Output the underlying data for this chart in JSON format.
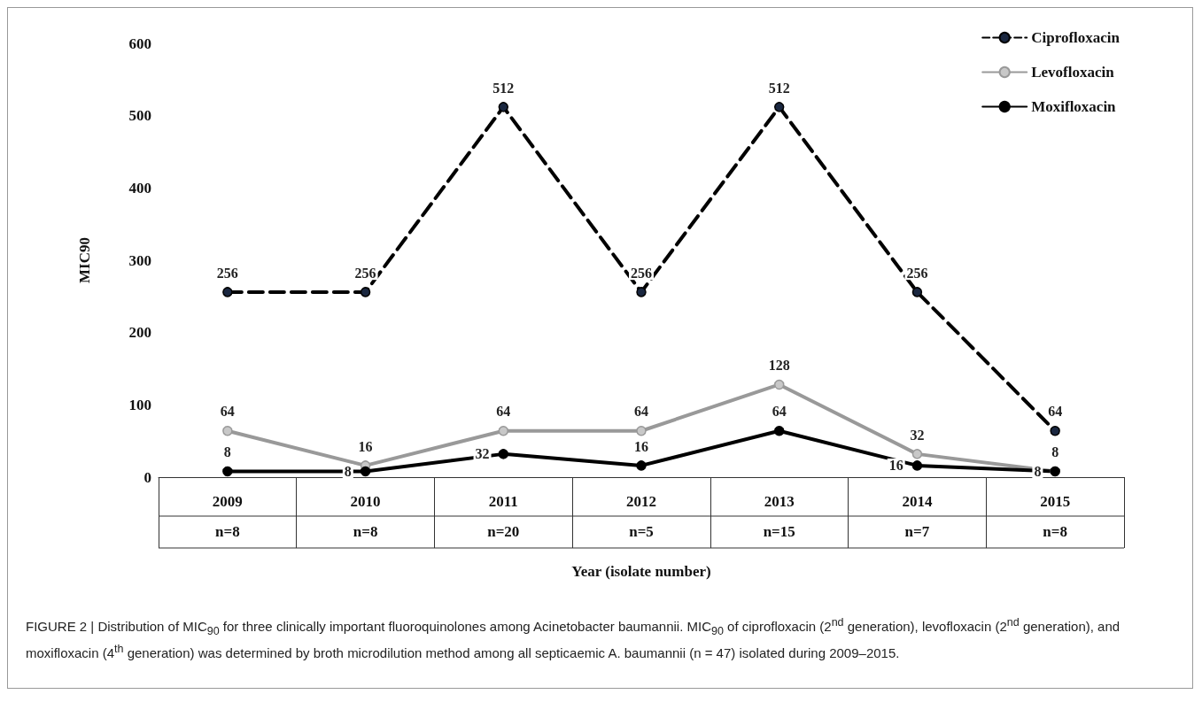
{
  "chart_data": {
    "type": "line",
    "categories": [
      "2009\nn=8",
      "2010\nn=8",
      "2011\nn=20",
      "2012\nn=5",
      "2013\nn=15",
      "2014\nn=7",
      "2015\nn=8"
    ],
    "series": [
      {
        "name": "Ciprofloxacin",
        "color": "#000000",
        "line_style": "dashed",
        "values": [
          256,
          256,
          512,
          256,
          512,
          256,
          64
        ]
      },
      {
        "name": "Levofloxacin",
        "color": "#999999",
        "line_style": "solid",
        "values": [
          64,
          16,
          64,
          64,
          128,
          32,
          8
        ]
      },
      {
        "name": "Moxifloxacin",
        "color": "#000000",
        "line_style": "solid",
        "values": [
          8,
          8,
          32,
          16,
          64,
          16,
          8
        ]
      }
    ],
    "ylabel": "MIC90",
    "xlabel": "Year (isolate number)",
    "ylim": [
      0,
      600
    ],
    "yticks": [
      0,
      100,
      200,
      300,
      400,
      500,
      600
    ],
    "grid": false,
    "legend": "top right",
    "marker": "circle",
    "data_labels": true,
    "annotations": [
      "FIGURE 2 | Distribution of MIC$_{90}$ for three clinically important fluoroquinolones among Acinetobacter baumannii. MIC$_{90}$ of ciprofloxacin (2$^{nd}$ generation), levofloxacin (2$^{nd}$ generation), and moxifloxacin (4$^{th}$ generation) was determined by broth microdilution method among all septicaemic A. baumannii (n = 47) isolated during 2009–2015."
    ]
  }
}
